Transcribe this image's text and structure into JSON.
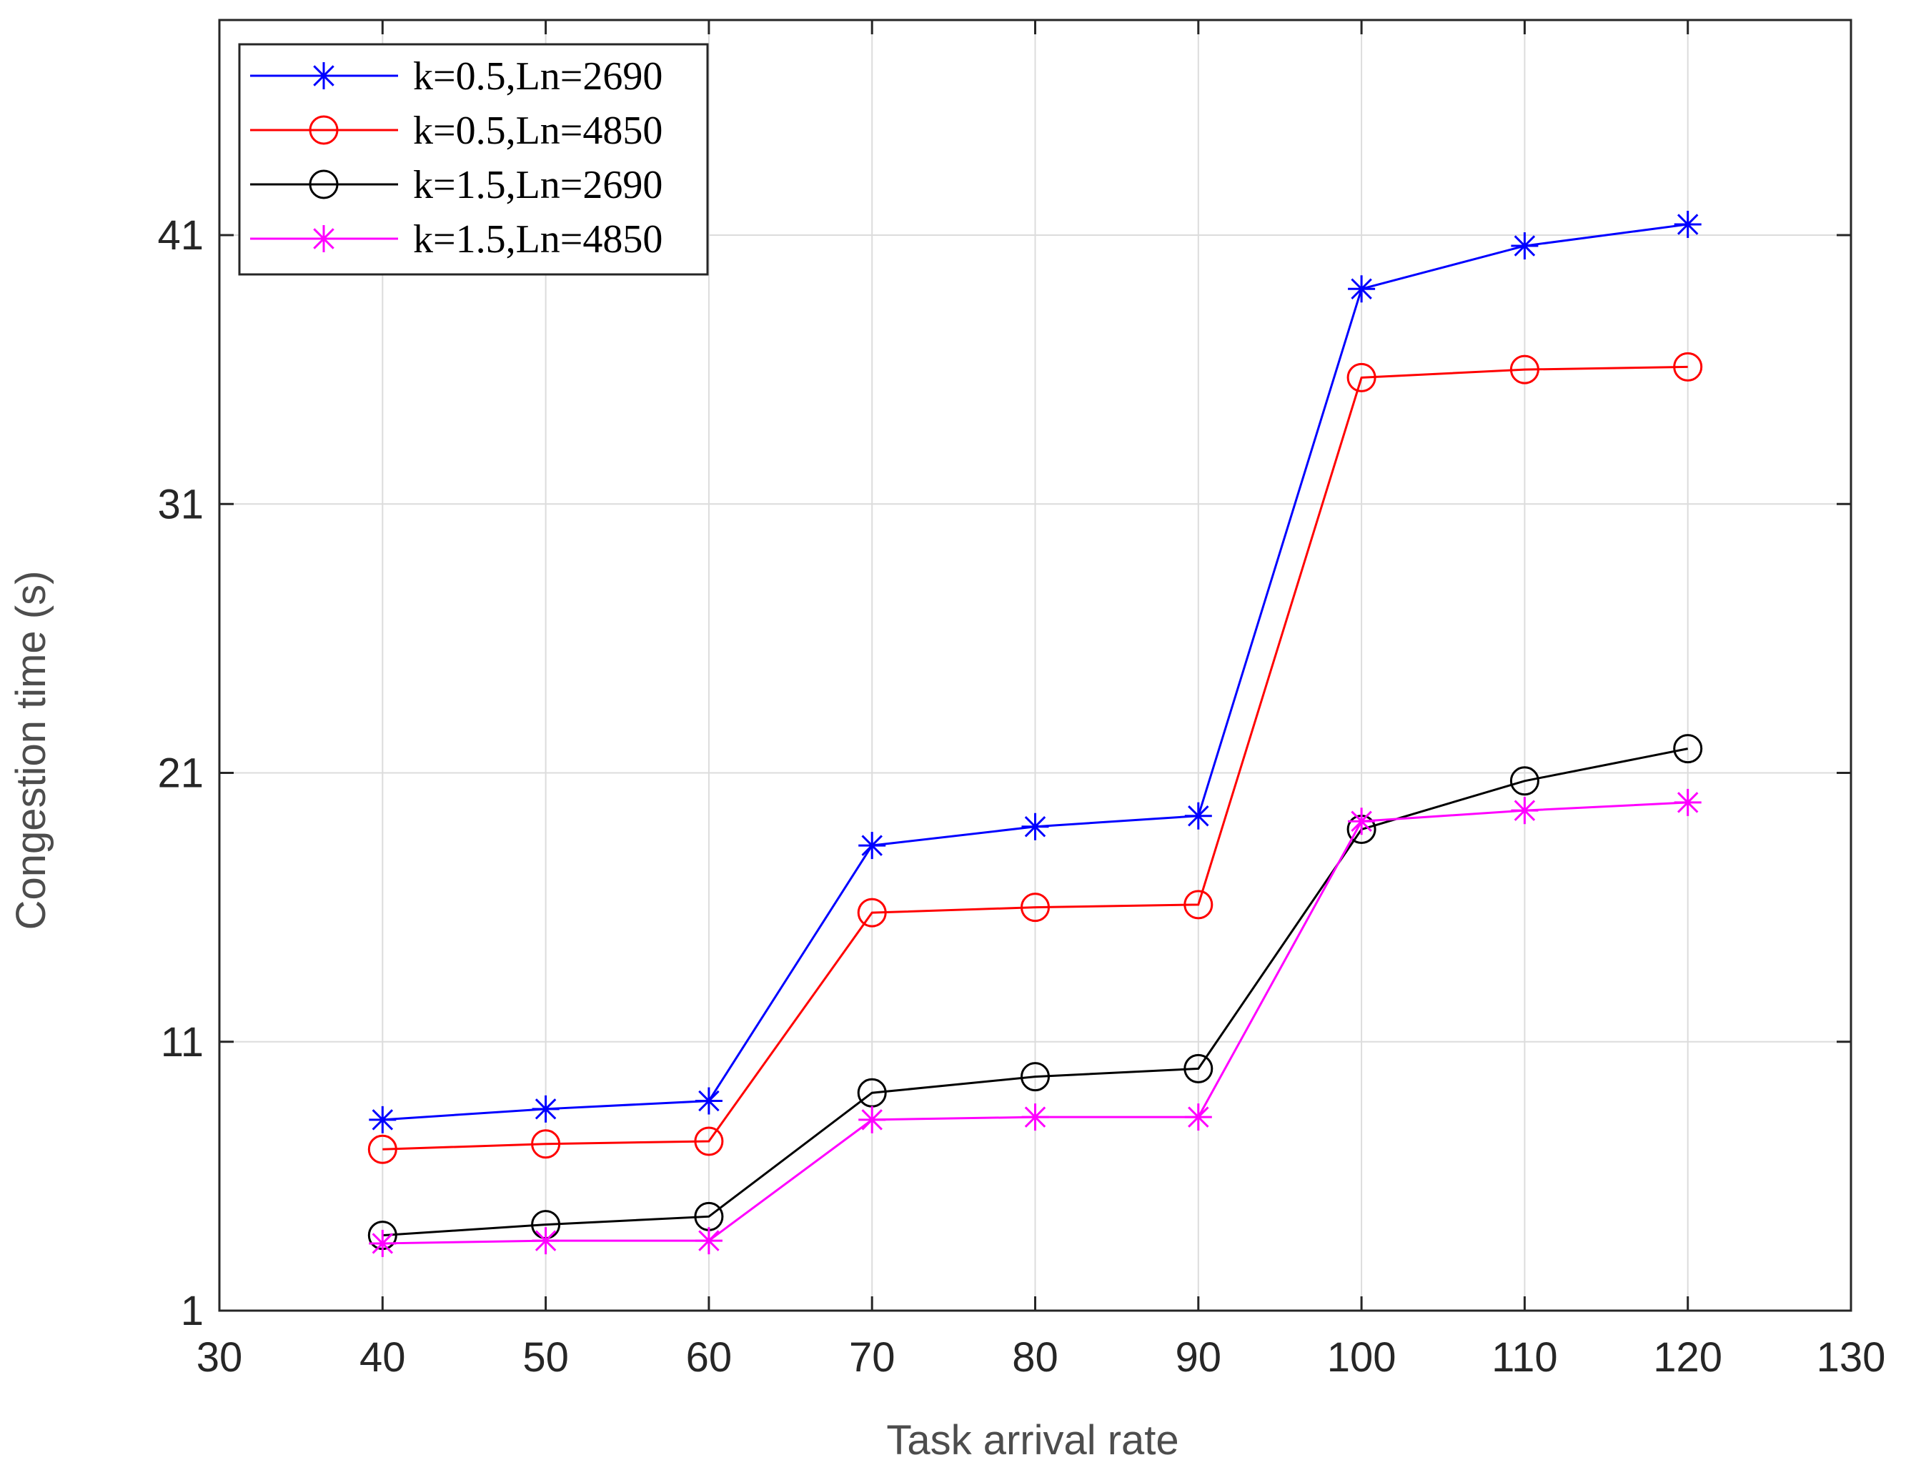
{
  "chart_data": {
    "type": "line",
    "title": "",
    "xlabel": "Task arrival rate",
    "ylabel": "Congestion time (s)",
    "xlim": [
      30,
      130
    ],
    "ylim": [
      1,
      49
    ],
    "xticks": [
      30,
      40,
      50,
      60,
      70,
      80,
      90,
      100,
      110,
      120,
      130
    ],
    "yticks": [
      1,
      11,
      21,
      31,
      41
    ],
    "grid": true,
    "legend_position": "top-left",
    "x": [
      40,
      50,
      60,
      70,
      80,
      90,
      100,
      110,
      120
    ],
    "series": [
      {
        "name": "k=0.5,Ln=2690",
        "color": "#0000ff",
        "marker": "asterisk",
        "values": [
          8.1,
          8.5,
          8.8,
          18.3,
          19.0,
          19.4,
          39.0,
          40.6,
          41.4
        ]
      },
      {
        "name": "k=0.5,Ln=4850",
        "color": "#ff0000",
        "marker": "circle",
        "values": [
          7.0,
          7.2,
          7.3,
          15.8,
          16.0,
          16.1,
          35.7,
          36.0,
          36.1
        ]
      },
      {
        "name": "k=1.5,Ln=2690",
        "color": "#000000",
        "marker": "circle",
        "values": [
          3.8,
          4.2,
          4.5,
          9.1,
          9.7,
          10.0,
          18.9,
          20.7,
          21.9
        ]
      },
      {
        "name": "k=1.5,Ln=4850",
        "color": "#ff00ff",
        "marker": "asterisk",
        "values": [
          3.5,
          3.6,
          3.6,
          8.1,
          8.2,
          8.2,
          19.2,
          19.6,
          19.9
        ]
      }
    ]
  }
}
